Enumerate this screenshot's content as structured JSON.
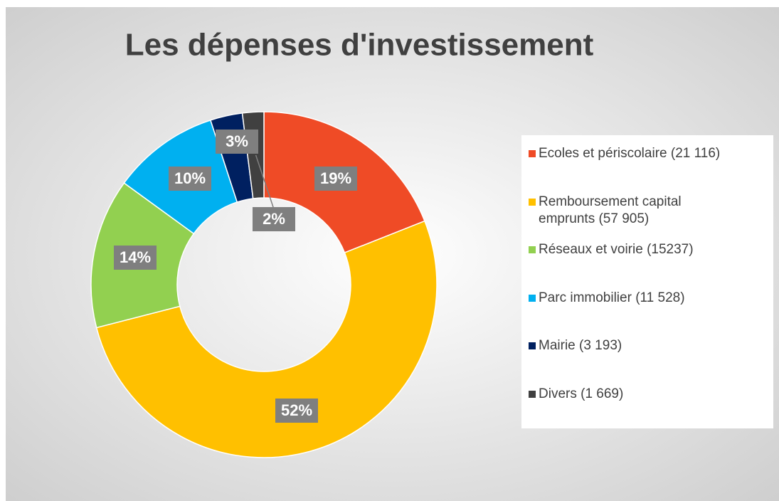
{
  "chart_data": {
    "type": "donut",
    "title": "Les dépenses d'investissement",
    "categories": [
      "Ecoles et périscolaire (21 116)",
      "Remboursement capital emprunts (57 905)",
      "Réseaux et voirie (15237)",
      "Parc immobilier (11 528)",
      "Mairie (3 193)",
      "Divers (1 669)"
    ],
    "values": [
      19,
      52,
      14,
      10,
      3,
      2
    ],
    "value_labels": [
      "19%",
      "52%",
      "14%",
      "10%",
      "3%",
      "2%"
    ],
    "colors": [
      "#ef4b26",
      "#ffc000",
      "#92d050",
      "#00b0f0",
      "#002060",
      "#404040"
    ],
    "legend": "right"
  }
}
